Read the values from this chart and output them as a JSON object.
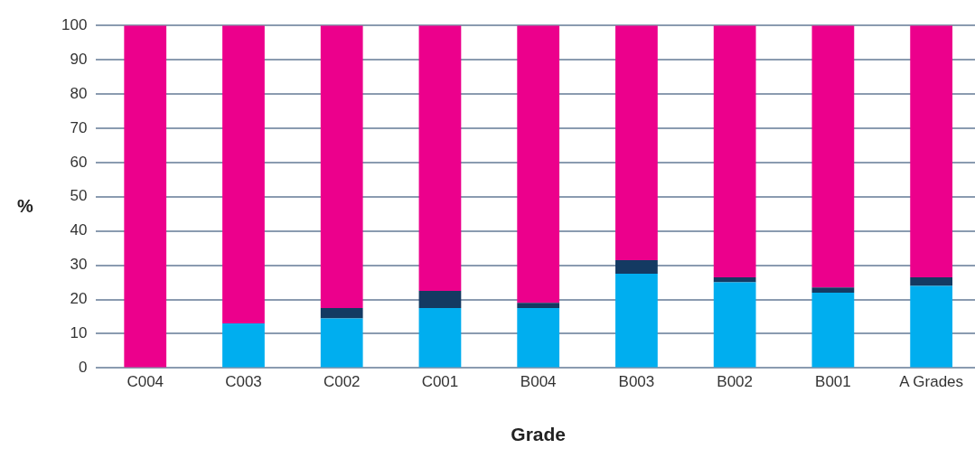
{
  "chart_data": {
    "type": "bar",
    "stacked": true,
    "xlabel": "Grade",
    "ylabel": "%",
    "categories": [
      "C004",
      "C003",
      "C002",
      "C001",
      "B004",
      "B003",
      "B002",
      "B001",
      "A Grades"
    ],
    "series": [
      {
        "color": "#00aeef",
        "values": [
          0,
          13,
          14.5,
          17.5,
          17.5,
          27.5,
          25,
          22,
          24
        ]
      },
      {
        "color": "#143a62",
        "values": [
          null,
          0,
          3,
          5,
          1.5,
          4,
          1.5,
          1.5,
          2.5
        ]
      },
      {
        "color": "#ec008c",
        "values": [
          100,
          87,
          82.5,
          77.5,
          81,
          68.5,
          73.5,
          76.5,
          73.5
        ]
      }
    ],
    "ylim": [
      0,
      100
    ],
    "yticks": [
      0,
      10,
      20,
      30,
      40,
      50,
      60,
      70,
      80,
      90,
      100
    ],
    "grid": "y",
    "legend": false
  }
}
